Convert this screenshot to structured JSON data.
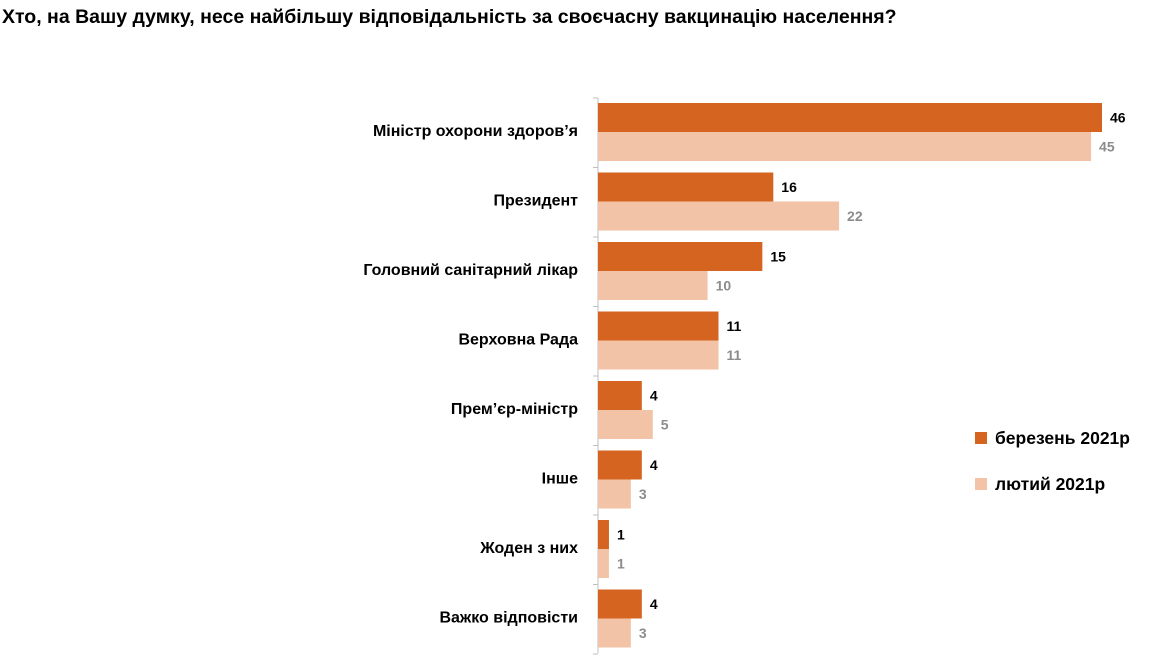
{
  "chart_data": {
    "type": "bar",
    "orientation": "horizontal",
    "title": "Хто, на Вашу думку, несе найбільшу відповідальність за своєчасну вакцинацію населення?",
    "categories": [
      "Міністр охорони здоров’я",
      "Президент",
      "Головний санітарний лікар",
      "Верховна Рада",
      "Прем’єр-міністр",
      "Інше",
      "Жоден з них",
      "Важко відповісти"
    ],
    "series": [
      {
        "name": "березень 2021р",
        "color": "#d56420",
        "values": [
          46,
          16,
          15,
          11,
          4,
          4,
          1,
          4
        ]
      },
      {
        "name": "лютий 2021р",
        "color": "#f2c3a6",
        "values": [
          45,
          22,
          10,
          11,
          5,
          3,
          1,
          3
        ]
      }
    ],
    "xlim": [
      0,
      46
    ],
    "grid": false,
    "legend_position": "right"
  }
}
